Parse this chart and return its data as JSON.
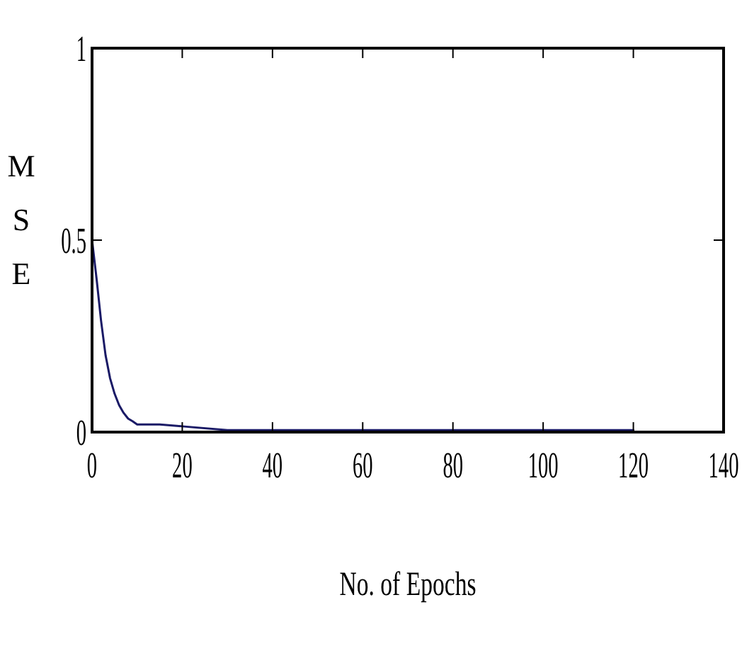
{
  "chart_data": {
    "type": "line",
    "xlabel": "No. of Epochs",
    "ylabel": "MSE",
    "x": [
      0,
      1,
      2,
      3,
      4,
      5,
      6,
      7,
      8,
      9,
      10,
      15,
      20,
      30,
      40,
      60,
      80,
      100,
      120
    ],
    "series": [
      {
        "color": "#1a1a66",
        "values": [
          0.5,
          0.4,
          0.29,
          0.2,
          0.14,
          0.1,
          0.07,
          0.05,
          0.035,
          0.028,
          0.02,
          0.02,
          0.015,
          0.005,
          0.005,
          0.005,
          0.005,
          0.005,
          0.005
        ]
      }
    ],
    "xlim": [
      0,
      140
    ],
    "xticks": [
      0,
      20,
      40,
      60,
      80,
      100,
      120,
      140
    ],
    "ylim": [
      0,
      1
    ],
    "yticks": [
      0,
      0.5,
      1
    ],
    "grid": false,
    "marker": "none",
    "line_style": "solid"
  }
}
